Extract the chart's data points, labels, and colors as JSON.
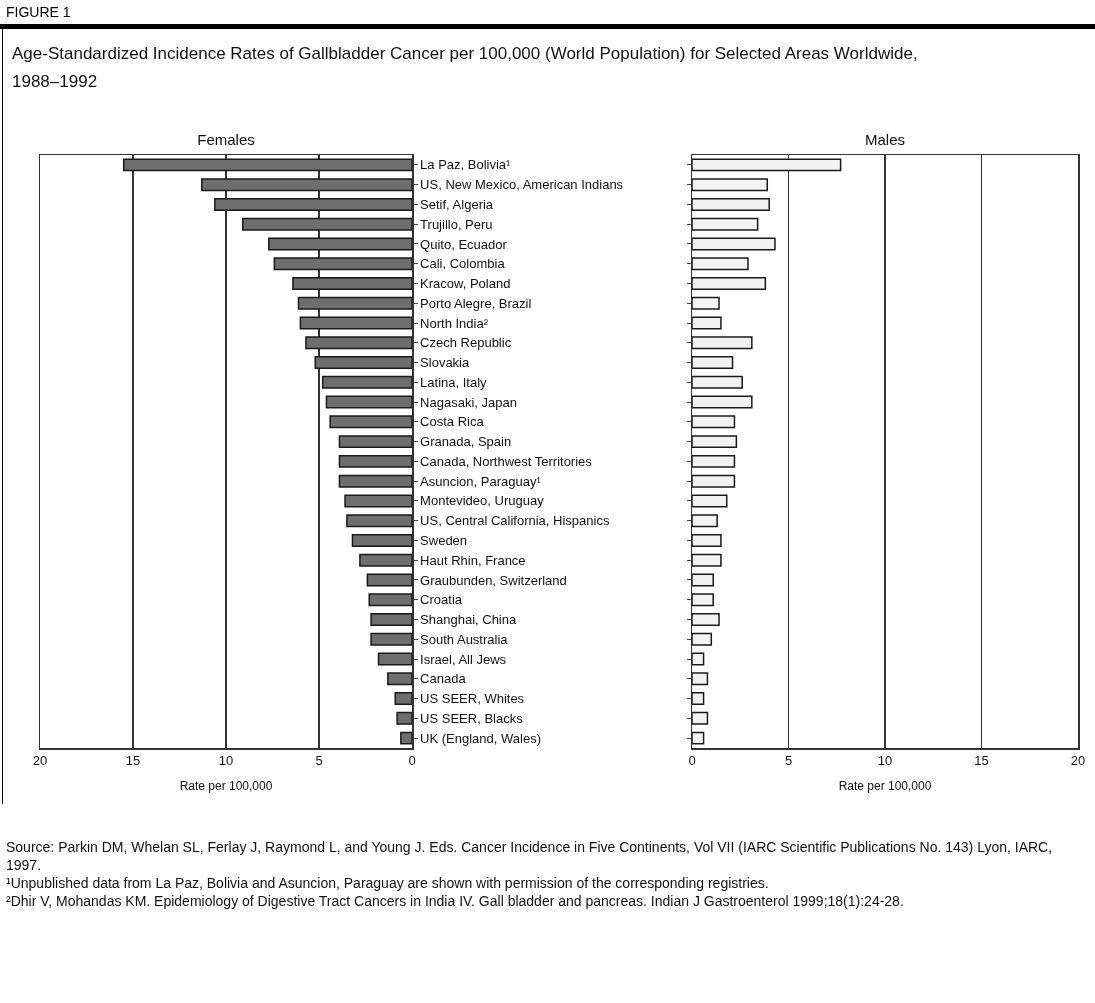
{
  "chart_data": [
    {
      "type": "bar",
      "orientation": "horizontal",
      "title": "Age-Standardized Incidence Rates of Gallbladder Cancer per 100,000 (World Population) for Selected Areas Worldwide, 1988–1992",
      "subtitle": "Females",
      "xlabel": "Rate per 100,000",
      "categories": [
        "La Paz, Bolivia¹",
        "US, New Mexico, American Indians",
        "Setif, Algeria",
        "Trujillo, Peru",
        "Quito, Ecuador",
        "Cali, Colombia",
        "Kracow, Poland",
        "Porto Alegre, Brazil",
        "North India²",
        "Czech Republic",
        "Slovakia",
        "Latina, Italy",
        "Nagasaki, Japan",
        "Costa Rica",
        "Granada, Spain",
        "Canada, Northwest Territories",
        "Asuncion, Paraguay¹",
        "Montevideo, Uruguay",
        "US, Central California, Hispanics",
        "Sweden",
        "Haut Rhin, France",
        "Graubunden, Switzerland",
        "Croatia",
        "Shanghai, China",
        "South Australia",
        "Israel, All Jews",
        "Canada",
        "US SEER, Whites",
        "US SEER, Blacks",
        "UK (England, Wales)"
      ],
      "values": [
        15.5,
        11.3,
        10.6,
        9.1,
        7.7,
        7.4,
        6.4,
        6.1,
        6.0,
        5.7,
        5.2,
        4.8,
        4.6,
        4.4,
        3.9,
        3.9,
        3.9,
        3.6,
        3.5,
        3.2,
        2.8,
        2.4,
        2.3,
        2.2,
        2.2,
        1.8,
        1.3,
        0.9,
        0.8,
        0.6
      ],
      "color": "#6e6e6e",
      "xlim": [
        20,
        0
      ],
      "xticks": [
        20,
        15,
        10,
        5,
        0
      ],
      "grid": "x",
      "annotations": [
        "FIGURE 1",
        "Source: Parkin DM, Whelan SL, Ferlay J, Raymond L, and Young J. Eds. Cancer Incidence in Five Continents, Vol VII (IARC Scientific Publications No. 143) Lyon, IARC, 1997.",
        "¹Unpublished data from La Paz, Bolivia and Asuncion, Paraguay are shown with permission of the corresponding registries.",
        "²Dhir V, Mohandas KM. Epidemiology of Digestive Tract Cancers in India IV. Gall bladder and pancreas. Indian J Gastroenterol 1999;18(1):24-28."
      ]
    },
    {
      "type": "bar",
      "orientation": "horizontal",
      "title": "Males",
      "xlabel": "Rate per 100,000",
      "categories": [
        null,
        null,
        null,
        null,
        null,
        null,
        null,
        null,
        null,
        null,
        null,
        null,
        null,
        null,
        null,
        null,
        null,
        null,
        null,
        null,
        null,
        null,
        null,
        null,
        null,
        null,
        null,
        null,
        null,
        null
      ],
      "values": [
        7.7,
        3.9,
        4.0,
        3.4,
        4.3,
        2.9,
        3.8,
        1.4,
        1.5,
        3.1,
        2.1,
        2.6,
        3.1,
        2.2,
        2.3,
        2.2,
        2.2,
        1.8,
        1.3,
        1.5,
        1.5,
        1.1,
        1.1,
        1.4,
        1.0,
        0.6,
        0.8,
        0.6,
        0.8,
        0.6
      ],
      "color": "#f2f2f2",
      "xlim": [
        0,
        20
      ],
      "xticks": [
        0,
        5,
        10,
        15,
        20
      ],
      "grid": "x",
      "tick_labels": "x"
    }
  ]
}
